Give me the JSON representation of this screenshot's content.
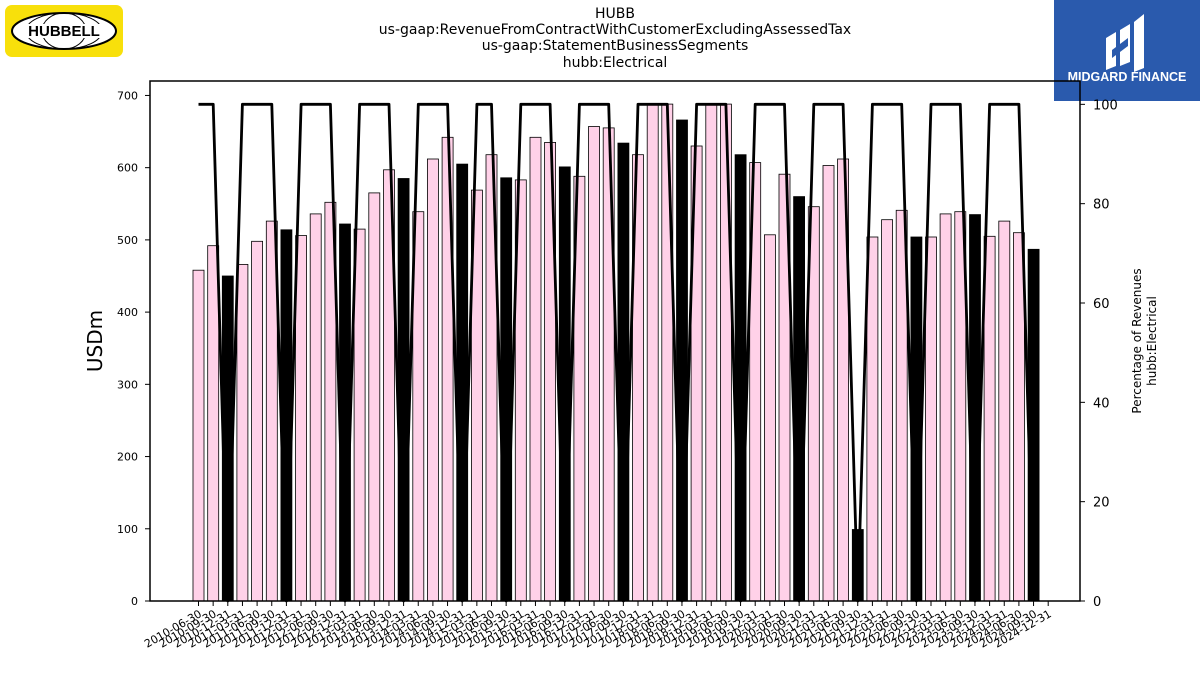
{
  "header": {
    "title_lines": [
      "HUBB",
      "us-gaap:RevenueFromContractWithCustomerExcludingAssessedTax",
      "us-gaap:StatementBusinessSegments",
      "hubb:Electrical"
    ]
  },
  "logos": {
    "left": {
      "text": "HUBBELL",
      "bg": "#f8e00b"
    },
    "right": {
      "text": "MIDGARD FINANCE",
      "bg": "#2a5aad"
    }
  },
  "chart_data": {
    "type": "bar",
    "ylabel": "USDm",
    "y2label_lines": [
      "Percentage of Revenues",
      "hubb:Electrical"
    ],
    "ylim": [
      0,
      720
    ],
    "y2lim": [
      0,
      104.7
    ],
    "yticks": [
      0,
      100,
      200,
      300,
      400,
      500,
      600,
      700
    ],
    "y2ticks": [
      0,
      20,
      40,
      60,
      80,
      100
    ],
    "colors": {
      "quarter": "#ffd1e8",
      "annual": "#000000",
      "line": "#000000"
    },
    "categories": [
      "2010-06-30",
      "2010-09-30",
      "2010-12-31",
      "2011-03-31",
      "2011-06-30",
      "2011-09-30",
      "2011-12-31",
      "2012-03-31",
      "2012-06-30",
      "2012-09-30",
      "2012-12-31",
      "2013-03-31",
      "2013-06-30",
      "2013-09-30",
      "2013-12-31",
      "2014-03-31",
      "2014-06-30",
      "2014-09-30",
      "2014-12-31",
      "2015-03-31",
      "2015-06-30",
      "2015-09-30",
      "2015-12-31",
      "2016-03-31",
      "2016-06-30",
      "2016-09-30",
      "2016-12-31",
      "2017-03-31",
      "2017-06-30",
      "2017-09-30",
      "2017-12-31",
      "2018-03-31",
      "2018-06-30",
      "2018-09-30",
      "2018-12-31",
      "2019-03-31",
      "2019-06-30",
      "2019-09-30",
      "2019-12-31",
      "2020-03-31",
      "2020-06-30",
      "2020-09-30",
      "2020-12-31",
      "2021-03-31",
      "2021-06-30",
      "2021-09-30",
      "2021-12-31",
      "2022-03-31",
      "2022-06-30",
      "2022-09-30",
      "2022-12-31",
      "2023-03-31",
      "2023-06-30",
      "2023-09-30",
      "2023-12-31",
      "2024-03-31",
      "2024-06-30",
      "2024-09-30",
      "2024-12-31"
    ],
    "values": [
      458,
      492,
      450,
      466,
      498,
      526,
      514,
      506,
      536,
      552,
      522,
      515,
      565,
      597,
      585,
      539,
      612,
      642,
      605,
      569,
      618,
      586,
      583,
      642,
      635,
      601,
      588,
      657,
      655,
      634,
      618,
      688,
      688,
      666,
      630,
      688,
      688,
      618,
      607,
      507,
      591,
      560,
      546,
      603,
      612,
      99,
      504,
      528,
      541,
      504,
      504,
      536,
      539,
      535,
      505,
      526,
      510,
      487,
      null
    ],
    "bar_types": [
      "quarter",
      "quarter",
      "annual",
      "quarter",
      "quarter",
      "quarter",
      "annual",
      "quarter",
      "quarter",
      "quarter",
      "annual",
      "quarter",
      "quarter",
      "quarter",
      "annual",
      "quarter",
      "quarter",
      "quarter",
      "annual",
      "quarter",
      "quarter",
      "annual",
      "quarter",
      "quarter",
      "quarter",
      "annual",
      "quarter",
      "quarter",
      "quarter",
      "annual",
      "quarter",
      "quarter",
      "quarter",
      "annual",
      "quarter",
      "quarter",
      "quarter",
      "annual",
      "quarter",
      "quarter",
      "quarter",
      "annual",
      "quarter",
      "quarter",
      "quarter",
      "annual",
      "quarter",
      "quarter",
      "quarter",
      "annual",
      "quarter",
      "quarter",
      "quarter",
      "annual",
      "quarter",
      "quarter",
      "quarter",
      "annual",
      null
    ],
    "percentage": [
      100,
      100,
      0,
      100,
      100,
      100,
      0,
      100,
      100,
      100,
      0,
      100,
      100,
      100,
      0,
      100,
      100,
      100,
      0,
      100,
      100,
      0,
      100,
      100,
      100,
      0,
      100,
      100,
      100,
      0,
      100,
      100,
      100,
      0,
      100,
      100,
      100,
      0,
      100,
      100,
      100,
      0,
      100,
      100,
      100,
      0,
      100,
      100,
      100,
      0,
      100,
      100,
      100,
      0,
      100,
      100,
      100,
      0,
      null
    ]
  }
}
